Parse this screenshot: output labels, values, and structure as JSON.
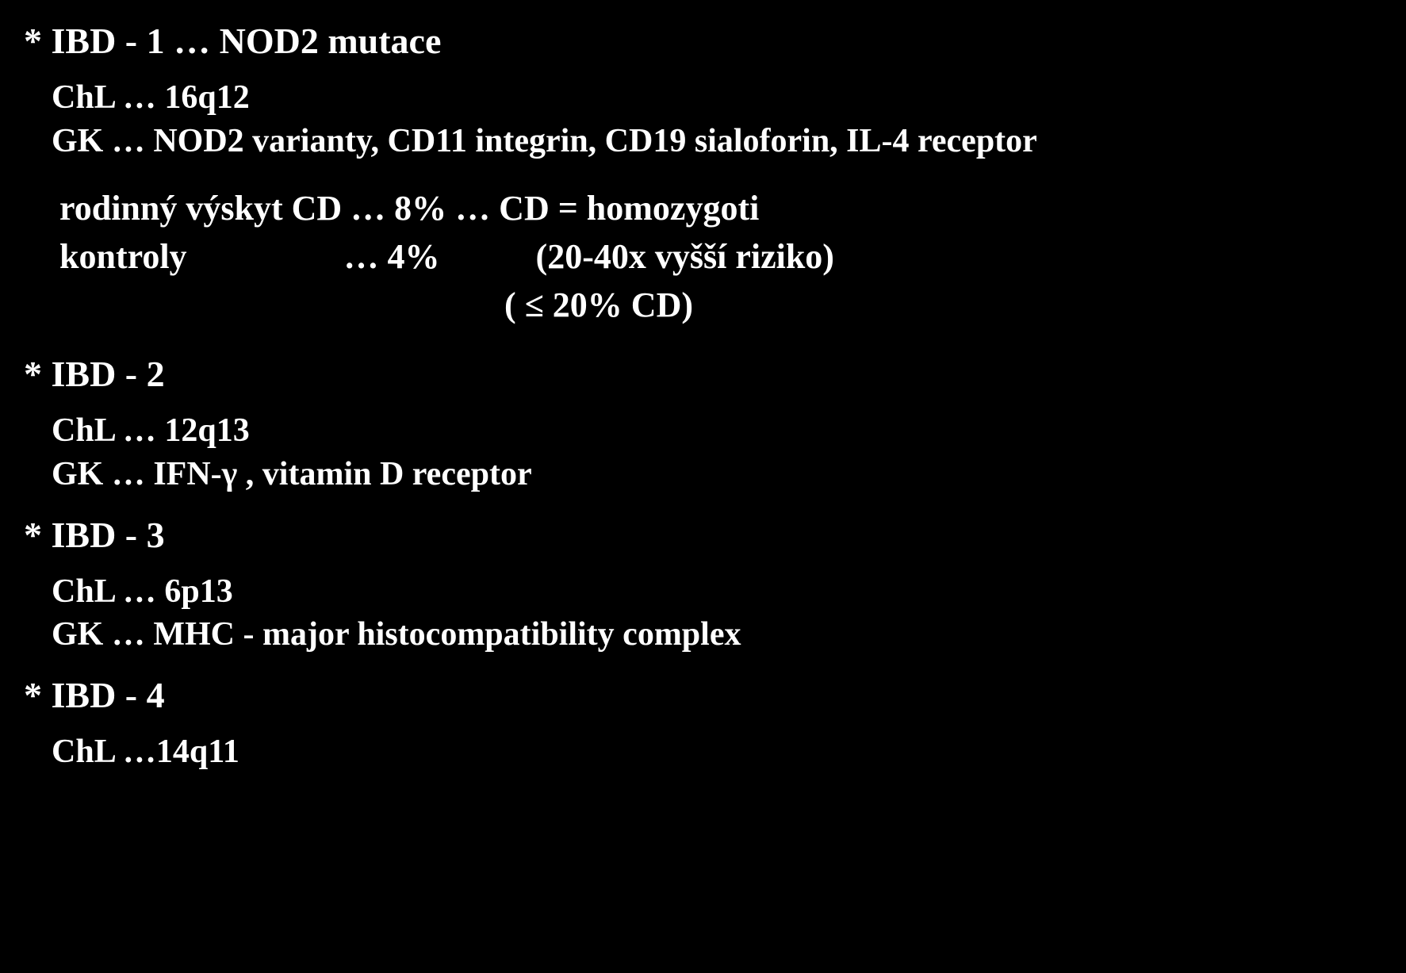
{
  "background_color": "#000000",
  "text_color": "#ffffff",
  "font_family": "Times New Roman",
  "title_fontsize": 46,
  "body_fontsize": 42,
  "stats_fontsize": 44,
  "sections": {
    "ibd1": {
      "title": "* IBD - 1 … NOD2 mutace",
      "chl": "ChL … 16q12",
      "gk": "GK  … NOD2 varianty, CD11 integrin, CD19 sialoforin, IL-4 receptor",
      "stats": {
        "row1": "rodinný výskyt CD … 8% … CD = homozygoti",
        "row2": "kontroly                  … 4%           (20-40x vyšší riziko)",
        "row3": "                                                   ( ≤ 20% CD)"
      }
    },
    "ibd2": {
      "title": "* IBD - 2",
      "chl": "ChL … 12q13",
      "gk": "GK … IFN-γ , vitamin D receptor"
    },
    "ibd3": {
      "title": "* IBD - 3",
      "chl": "ChL … 6p13",
      "gk": "GK … MHC - major histocompatibility complex"
    },
    "ibd4": {
      "title": "* IBD - 4",
      "chl": "ChL …14q11"
    }
  }
}
